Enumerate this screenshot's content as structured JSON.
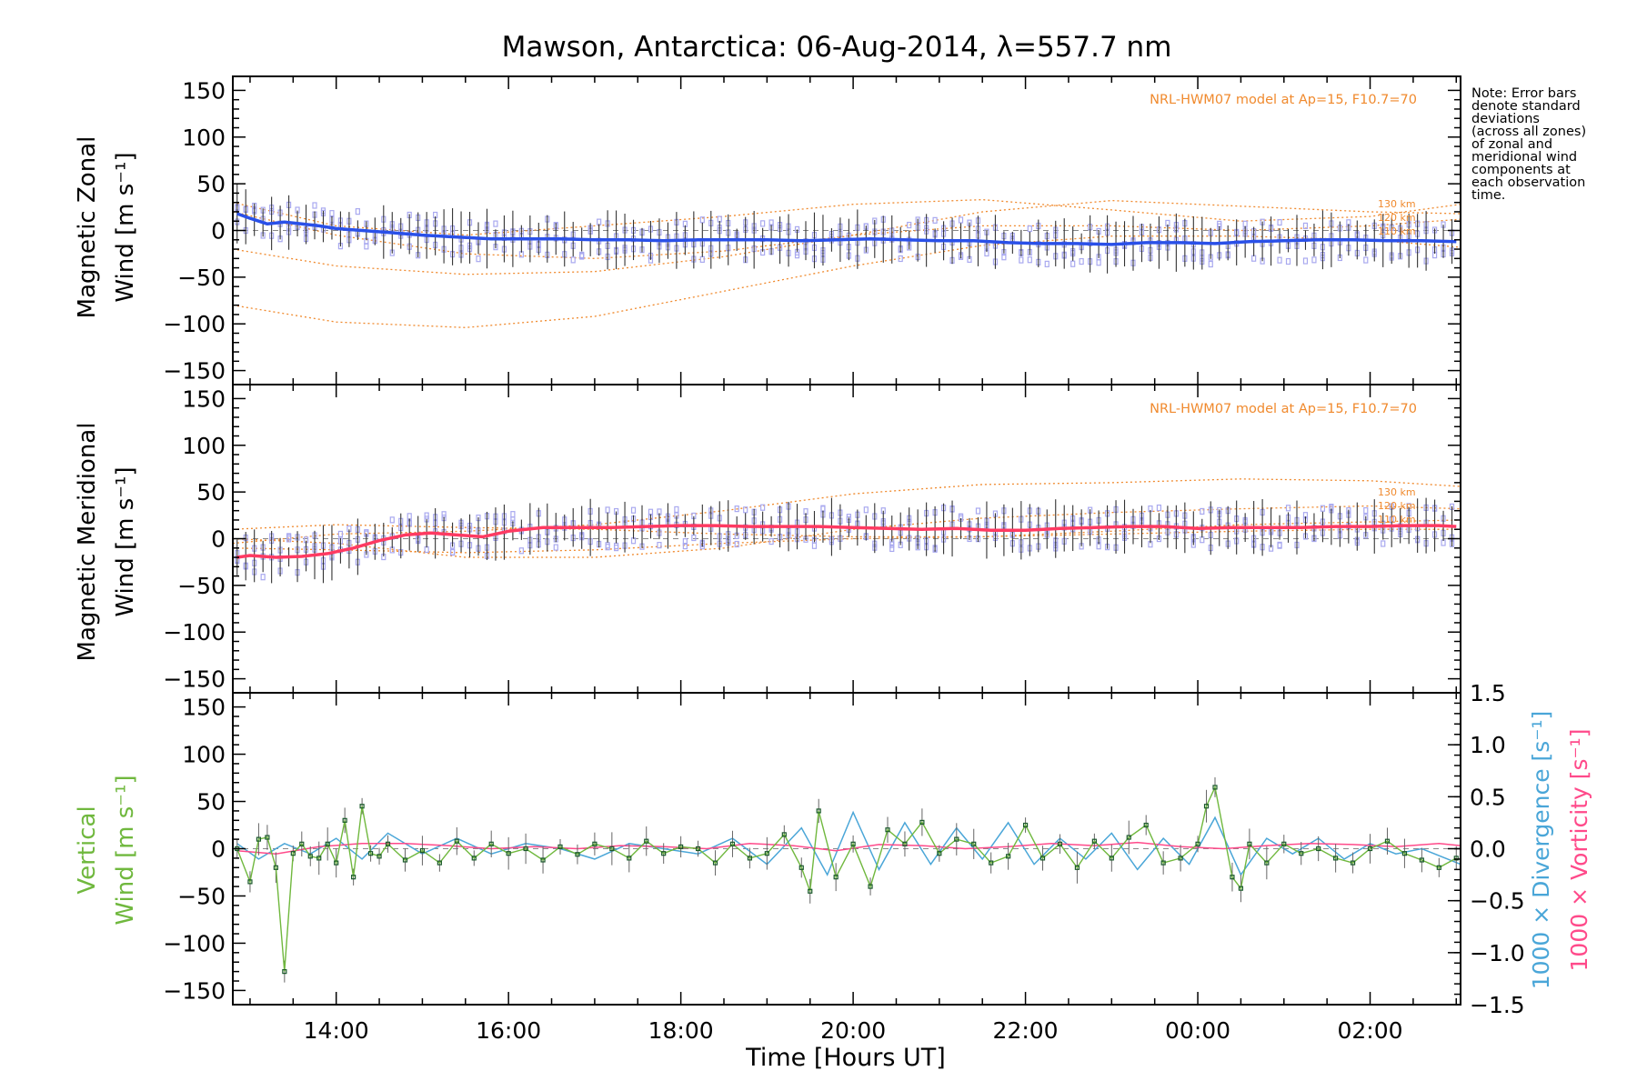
{
  "chart_data": {
    "type": "line",
    "title": "Mawson, Antarctica: 06-Aug-2014, λ=557.7 nm",
    "note_lines": [
      "Note: Error bars",
      "denote standard",
      "deviations",
      "(across all zones)",
      "of zonal and",
      "meridional wind",
      "components at",
      "each observation",
      "time."
    ],
    "xlabel": "Time [Hours UT]",
    "x_unit": "hours UT (values past 24 are after midnight)",
    "xlim": [
      12.8,
      27.05
    ],
    "x_ticks": [
      14,
      16,
      18,
      20,
      22,
      24,
      26
    ],
    "x_tick_labels": [
      "14:00",
      "16:00",
      "18:00",
      "20:00",
      "22:00",
      "00:00",
      "02:00"
    ],
    "ylim": [
      -165,
      165
    ],
    "y_ticks": [
      150,
      100,
      50,
      0,
      -50,
      -100,
      -150
    ],
    "y_tick_labels": [
      "150",
      "100",
      "50",
      "0",
      "−50",
      "−100",
      "−150"
    ],
    "colors": {
      "zonal": "#2a50e8",
      "meridional": "#ff3a62",
      "vertical": "#70b83e",
      "divergence": "#4aa6d8",
      "vorticity": "#ff4a8a",
      "model": "#f08a2e",
      "scatter": "#a9a9ef"
    },
    "panels": [
      {
        "id": "zonal",
        "ylabel_line1": "Magnetic Zonal",
        "ylabel_line2": "Wind [m s⁻¹]",
        "model_label": "NRL-HWM07 model at Ap=15, F10.7=70",
        "altitude_labels": [
          "130 km",
          "120 km",
          "110 km"
        ],
        "series": [
          {
            "name": "",
            "x": [
              12.85,
              13.0,
              13.2,
              13.4,
              13.6,
              13.8,
              14.0,
              14.3,
              14.6,
              15.0,
              15.4,
              15.8,
              16.2,
              16.6,
              17.0,
              17.4,
              17.8,
              18.2,
              18.6,
              19.0,
              19.4,
              19.8,
              20.2,
              20.6,
              21.0,
              21.4,
              21.8,
              22.2,
              22.6,
              23.0,
              23.4,
              23.8,
              24.2,
              24.6,
              25.0,
              25.4,
              25.8,
              26.2,
              26.6,
              27.0
            ],
            "y": [
              18,
              13,
              7,
              9,
              7,
              5,
              2,
              0,
              -2,
              -5,
              -7,
              -9,
              -9,
              -9,
              -10,
              -10,
              -11,
              -10,
              -10,
              -10,
              -11,
              -10,
              -9,
              -10,
              -11,
              -11,
              -13,
              -14,
              -14,
              -15,
              -13,
              -13,
              -14,
              -12,
              -11,
              -10,
              -10,
              -11,
              -11,
              -12
            ]
          },
          {
            "name": "",
            "x": [
              12.8,
              14.0,
              15.5,
              17.0,
              18.5,
              20.0,
              21.5,
              23.0,
              24.5,
              26.0,
              27.05
            ],
            "y": [
              -80,
              -98,
              -104,
              -92,
              -65,
              -38,
              -16,
              -6,
              -6,
              -10,
              -18
            ]
          },
          {
            "name": "",
            "x": [
              12.8,
              14.0,
              15.5,
              17.0,
              18.5,
              20.0,
              21.5,
              23.0,
              24.5,
              26.0,
              27.05
            ],
            "y": [
              -20,
              -38,
              -47,
              -44,
              -28,
              -5,
              20,
              32,
              26,
              20,
              18
            ]
          },
          {
            "name": "",
            "x": [
              12.8,
              14.0,
              15.5,
              17.0,
              18.5,
              20.0,
              21.5,
              23.0,
              24.5,
              26.0,
              27.05
            ],
            "y": [
              30,
              5,
              -5,
              5,
              15,
              28,
              33,
              22,
              10,
              15,
              28
            ]
          },
          {
            "name": "",
            "x": [
              12.8,
              14.0,
              15.5,
              17.0,
              18.5,
              20.0,
              21.5,
              23.0,
              24.5,
              26.0,
              27.05
            ],
            "y": [
              20,
              -5,
              -25,
              -30,
              -22,
              -5,
              5,
              5,
              0,
              5,
              12
            ]
          }
        ]
      },
      {
        "id": "meridional",
        "ylabel_line1": "Magnetic Meridional",
        "ylabel_line2": "Wind [m s⁻¹]",
        "model_label": "NRL-HWM07 model at Ap=15, F10.7=70",
        "altitude_labels": [
          "130 km",
          "120 km",
          "110 km"
        ],
        "series": [
          {
            "name": "",
            "x": [
              12.85,
              13.0,
              13.3,
              13.6,
              13.9,
              14.2,
              14.5,
              14.8,
              15.1,
              15.4,
              15.7,
              16.0,
              16.4,
              16.8,
              17.2,
              17.6,
              18.0,
              18.4,
              18.8,
              19.2,
              19.6,
              20.0,
              20.4,
              20.8,
              21.2,
              21.6,
              22.0,
              22.4,
              22.8,
              23.2,
              23.6,
              24.0,
              24.4,
              24.8,
              25.2,
              25.6,
              26.0,
              26.4,
              26.8,
              27.0
            ],
            "y": [
              -20,
              -18,
              -20,
              -19,
              -16,
              -10,
              -2,
              4,
              6,
              4,
              2,
              8,
              12,
              12,
              12,
              13,
              14,
              14,
              13,
              13,
              13,
              12,
              11,
              10,
              11,
              9,
              9,
              11,
              12,
              13,
              13,
              11,
              12,
              12,
              12,
              13,
              13,
              14,
              14,
              13
            ]
          },
          {
            "name": "",
            "x": [
              12.8,
              14.0,
              15.5,
              17.0,
              18.5,
              20.0,
              21.5,
              23.0,
              24.5,
              26.0,
              27.05
            ],
            "y": [
              -5,
              5,
              8,
              15,
              30,
              48,
              58,
              60,
              64,
              62,
              56
            ]
          },
          {
            "name": "",
            "x": [
              12.8,
              14.0,
              15.5,
              17.0,
              18.5,
              20.0,
              21.5,
              23.0,
              24.5,
              26.0,
              27.05
            ],
            "y": [
              0,
              -5,
              -20,
              -20,
              -10,
              10,
              22,
              28,
              32,
              35,
              32
            ]
          },
          {
            "name": "",
            "x": [
              12.8,
              14.0,
              15.5,
              17.0,
              18.5,
              20.0,
              21.5,
              23.0,
              24.5,
              26.0,
              27.05
            ],
            "y": [
              10,
              15,
              12,
              10,
              5,
              2,
              2,
              8,
              15,
              18,
              20
            ]
          },
          {
            "name": "",
            "x": [
              12.8,
              14.0,
              15.5,
              17.0,
              18.5,
              20.0,
              21.5,
              23.0,
              24.5,
              26.0,
              27.05
            ],
            "y": [
              -10,
              -12,
              -15,
              -12,
              -5,
              0,
              2,
              5,
              8,
              10,
              10
            ]
          }
        ]
      },
      {
        "id": "vertical",
        "ylabel_line1": "Vertical",
        "ylabel_line2": "Wind [m s⁻¹]",
        "y2label_divergence": "1000 × Divergence [s⁻¹]",
        "y2label_vorticity": "1000 × Vorticity [s⁻¹]",
        "y2lim": [
          -1.5,
          1.5
        ],
        "y2_ticks": [
          1.5,
          1.0,
          0.5,
          0.0,
          -0.5,
          -1.0,
          -1.5
        ],
        "y2_tick_labels": [
          "1.5",
          "1.0",
          "0.5",
          "0.0",
          "−0.5",
          "−1.0",
          "−1.5"
        ],
        "series": [
          {
            "name": "",
            "x": [
              12.85,
              13.0,
              13.1,
              13.2,
              13.3,
              13.4,
              13.5,
              13.6,
              13.7,
              13.8,
              13.9,
              14.0,
              14.1,
              14.2,
              14.3,
              14.4,
              14.5,
              14.6,
              14.8,
              15.0,
              15.2,
              15.4,
              15.6,
              15.8,
              16.0,
              16.2,
              16.4,
              16.6,
              16.8,
              17.0,
              17.2,
              17.4,
              17.6,
              17.8,
              18.0,
              18.2,
              18.4,
              18.6,
              18.8,
              19.0,
              19.2,
              19.4,
              19.5,
              19.6,
              19.8,
              20.0,
              20.2,
              20.4,
              20.6,
              20.8,
              21.0,
              21.2,
              21.4,
              21.6,
              21.8,
              22.0,
              22.2,
              22.4,
              22.6,
              22.8,
              23.0,
              23.2,
              23.4,
              23.6,
              23.8,
              24.0,
              24.1,
              24.2,
              24.4,
              24.5,
              24.6,
              24.8,
              25.0,
              25.2,
              25.4,
              25.6,
              25.8,
              26.0,
              26.2,
              26.4,
              26.6,
              26.8,
              27.0
            ],
            "y": [
              0,
              -35,
              10,
              12,
              -20,
              -130,
              -5,
              5,
              -8,
              -10,
              5,
              -15,
              30,
              -30,
              45,
              -5,
              -8,
              5,
              -12,
              -2,
              -15,
              8,
              -10,
              5,
              -5,
              0,
              -12,
              2,
              -6,
              5,
              0,
              -10,
              8,
              -5,
              2,
              0,
              -15,
              5,
              -10,
              -5,
              15,
              -20,
              -45,
              40,
              -30,
              5,
              -40,
              20,
              5,
              28,
              -5,
              10,
              5,
              -15,
              -8,
              25,
              -10,
              5,
              -20,
              8,
              -10,
              12,
              25,
              -15,
              -10,
              5,
              45,
              65,
              -30,
              -42,
              5,
              -15,
              5,
              -5,
              0,
              -10,
              -15,
              0,
              8,
              -5,
              -12,
              -20,
              -10
            ]
          },
          {
            "name": "",
            "x": [
              12.85,
              13.1,
              13.4,
              13.7,
              14.0,
              14.3,
              14.6,
              15.0,
              15.4,
              15.8,
              16.2,
              16.6,
              17.0,
              17.4,
              17.8,
              18.2,
              18.6,
              19.0,
              19.4,
              19.7,
              20.0,
              20.3,
              20.6,
              20.9,
              21.2,
              21.5,
              21.8,
              22.1,
              22.4,
              22.7,
              23.0,
              23.3,
              23.6,
              23.9,
              24.2,
              24.5,
              24.8,
              25.1,
              25.4,
              25.7,
              26.0,
              26.3,
              26.6,
              26.9,
              27.05
            ],
            "y": [
              0.05,
              -0.1,
              0.05,
              -0.05,
              0.1,
              -0.1,
              0.15,
              -0.05,
              0.1,
              -0.05,
              0.05,
              0.0,
              -0.1,
              0.05,
              0.0,
              -0.05,
              0.1,
              -0.15,
              0.2,
              -0.25,
              0.35,
              -0.2,
              0.25,
              -0.15,
              0.2,
              -0.1,
              0.25,
              -0.15,
              0.1,
              -0.1,
              0.15,
              -0.2,
              0.1,
              -0.15,
              0.3,
              -0.25,
              0.1,
              -0.05,
              0.1,
              -0.1,
              0.05,
              -0.05,
              0.0,
              -0.1,
              -0.15
            ]
          },
          {
            "name": "",
            "x": [
              12.85,
              13.3,
              13.8,
              14.3,
              14.8,
              15.3,
              15.8,
              16.3,
              16.8,
              17.3,
              17.8,
              18.3,
              18.8,
              19.3,
              19.8,
              20.3,
              20.8,
              21.3,
              21.8,
              22.3,
              22.8,
              23.3,
              23.8,
              24.3,
              24.8,
              25.3,
              25.8,
              26.3,
              26.8,
              27.05
            ],
            "y": [
              -0.02,
              -0.05,
              0.02,
              0.05,
              0.05,
              0.03,
              0.0,
              0.02,
              0.0,
              0.03,
              0.02,
              0.0,
              0.05,
              0.03,
              -0.02,
              0.04,
              0.03,
              0.0,
              0.02,
              0.05,
              0.03,
              0.06,
              0.02,
              0.0,
              0.03,
              0.05,
              0.04,
              0.02,
              0.05,
              0.03
            ]
          }
        ]
      }
    ]
  }
}
